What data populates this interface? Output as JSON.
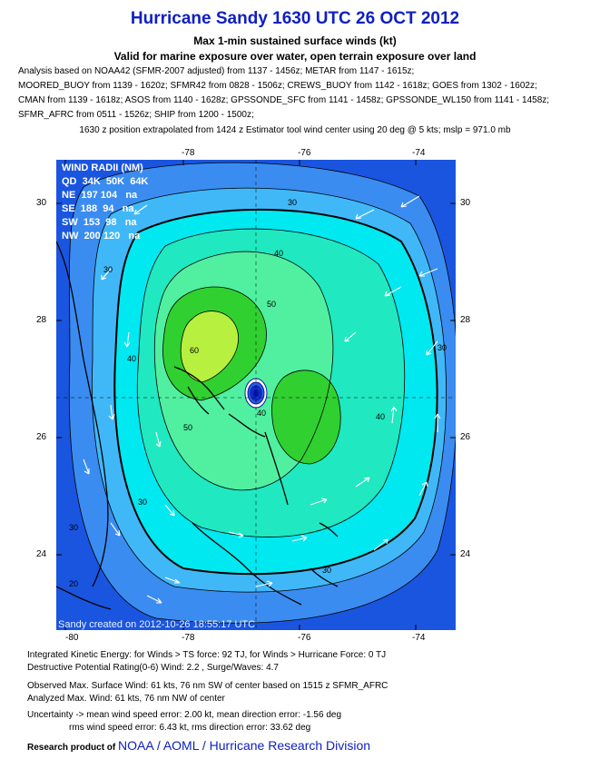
{
  "header": {
    "title": "Hurricane Sandy 1630 UTC 26 OCT 2012",
    "subtitle1": "Max 1-min sustained surface winds (kt)",
    "subtitle2": "Valid for marine exposure over water, open terrain exposure over land"
  },
  "analysis_lines": [
    "Analysis based on NOAA42 (SFMR-2007 adjusted) from 1137 - 1456z; METAR from 1147 - 1615z;",
    "MOORED_BUOY from 1139 - 1620z; SFMR42 from 0828 - 1506z; CREWS_BUOY from 1142 - 1618z; GOES from 1302 - 1602z;",
    "CMAN from 1139 - 1618z; ASOS from 1140 - 1628z; GPSSONDE_SFC from 1141 - 1458z; GPSSONDE_WL150 from 1141 - 1458z;",
    "SFMR_AFRC from 0511 - 1526z; SHIP from 1200 - 1500z;"
  ],
  "position_note": "1630 z position extrapolated from 1424 z Estimator tool wind center using 20 deg @ 5 kts; mslp = 971.0 mb",
  "map": {
    "lon_labels": [
      "-80",
      "-78",
      "-76",
      "-74"
    ],
    "lat_labels": [
      "30",
      "28",
      "26",
      "24"
    ],
    "contour_labels": [
      "30",
      "40",
      "50",
      "60",
      "30",
      "40",
      "50",
      "40",
      "30",
      "30",
      "30",
      "40",
      "30",
      "20"
    ],
    "legend": {
      "title": "WIND RADII (NM)",
      "header": "QD  34K  50K  64K",
      "rows": [
        "NE  197 104   na",
        "SE  188  94   na",
        "SW  153  98   na",
        "NW  200 120   na"
      ]
    },
    "stamp": "Sandy    created on 2012-10-26 18:55:17 UTC",
    "colors": {
      "deep": "#1a55e0",
      "blue": "#3a8cf0",
      "lightblue": "#40b8f8",
      "cyan": "#00e8f0",
      "teal": "#20e8c0",
      "mint": "#50f0a0",
      "green": "#30d030",
      "yellowgreen": "#b8f040"
    }
  },
  "footer": {
    "ike": "Integrated Kinetic Energy: for Winds > TS force: 92 TJ, for Winds > Hurricane Force: 0 TJ",
    "dpr": "Destructive Potential Rating(0-6)   Wind: 2.2 , Surge/Waves: 4.7",
    "obs": "Observed Max. Surface Wind: 61 kts, 76 nm SW of center based on 1515 z SFMR_AFRC",
    "ana": "Analyzed Max. Wind: 61 kts, 76 nm  NW of center",
    "unc1": "Uncertainty -> mean wind speed error: 2.00 kt, mean direction error:  -1.56 deg",
    "unc2": "rms wind speed error: 6.43 kt, rms direction error: 33.62 deg",
    "credit_prefix": "Research product of",
    "credit_org": "NOAA  /  AOML  /  Hurricane Research Division"
  }
}
